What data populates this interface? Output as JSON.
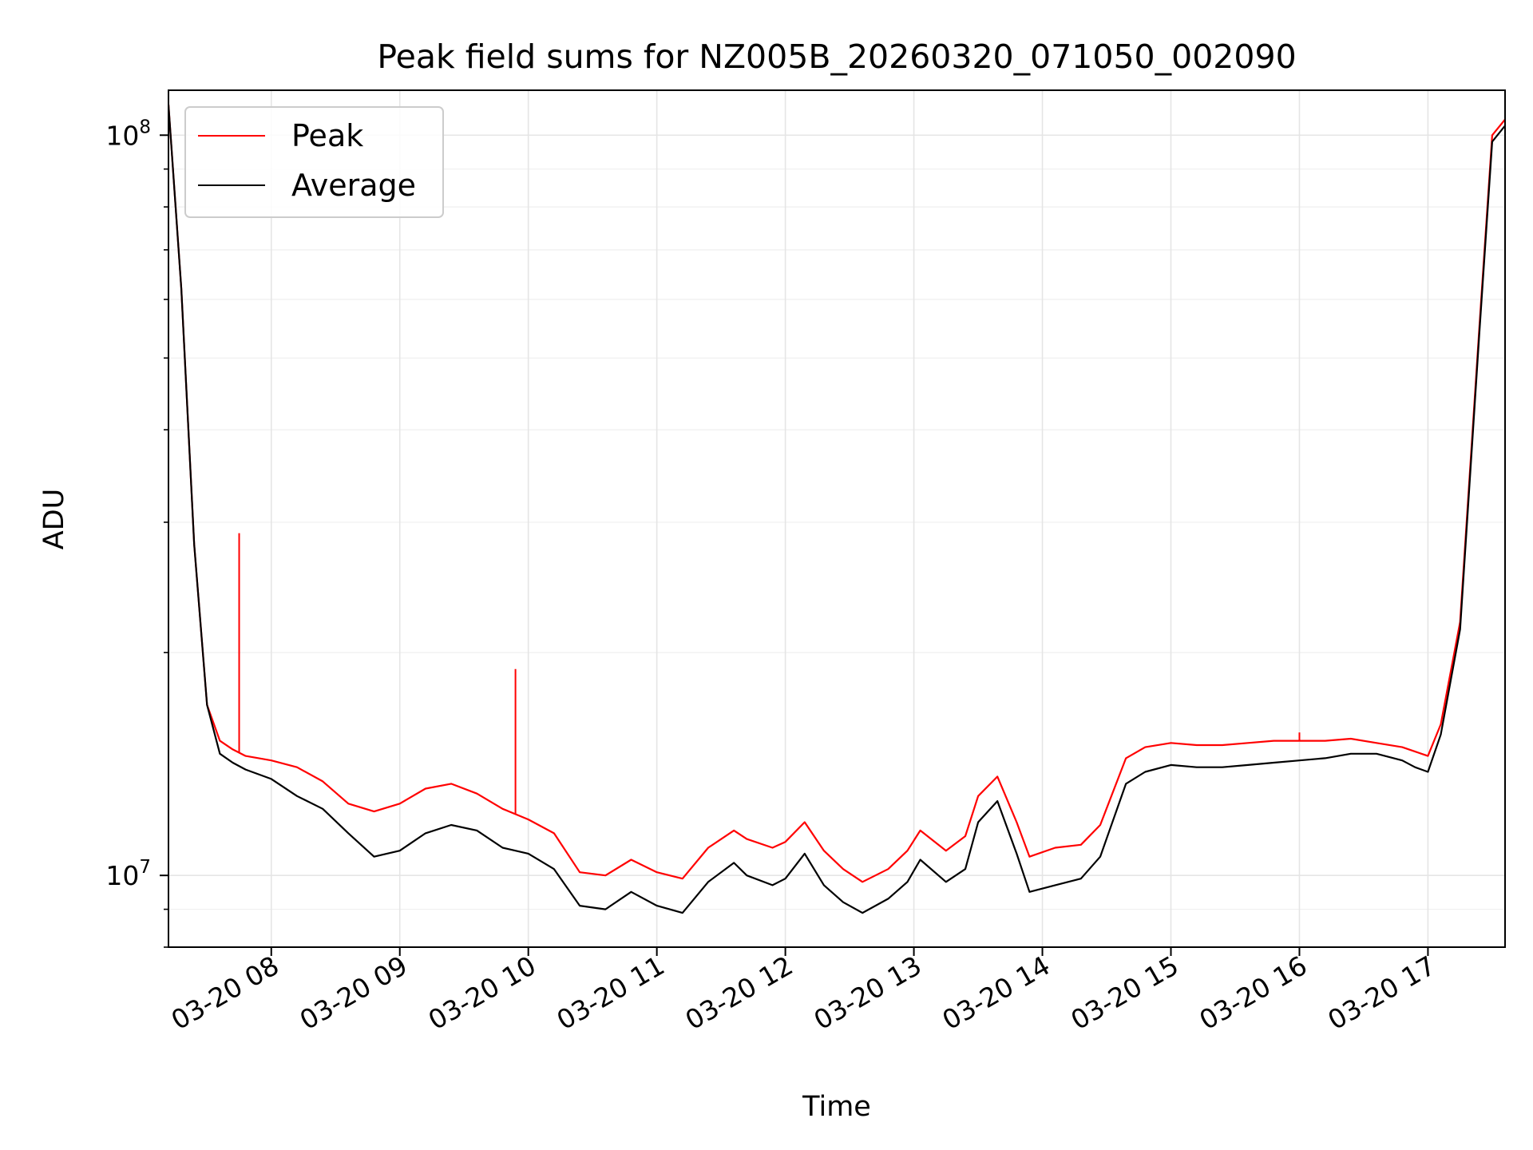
{
  "chart_data": {
    "type": "line",
    "title": "Peak field sums for NZ005B_20260320_071050_002090",
    "xlabel": "Time",
    "ylabel": "ADU",
    "yscale": "log",
    "grid": true,
    "legend_placement": "top-left",
    "xlim": [
      7.2,
      17.6
    ],
    "ylim": [
      8000000,
      115000000
    ],
    "x_ticks": [
      8,
      9,
      10,
      11,
      12,
      13,
      14,
      15,
      16,
      17
    ],
    "x_tick_labels": [
      "03-20 08",
      "03-20 09",
      "03-20 10",
      "03-20 11",
      "03-20 12",
      "03-20 13",
      "03-20 14",
      "03-20 15",
      "03-20 16",
      "03-20 17"
    ],
    "y_ticks": [
      10000000,
      100000000
    ],
    "y_tick_labels": [
      {
        "base": "10",
        "exp": "7"
      },
      {
        "base": "10",
        "exp": "8"
      }
    ],
    "x_unit_note": "x values are hours of day on 2026-03-20",
    "series": [
      {
        "name": "Peak",
        "color": "#ff0000",
        "x": [
          7.2,
          7.3,
          7.4,
          7.5,
          7.6,
          7.7,
          7.8,
          8.0,
          8.2,
          8.4,
          8.6,
          8.8,
          9.0,
          9.2,
          9.4,
          9.6,
          9.8,
          10.0,
          10.2,
          10.4,
          10.6,
          10.8,
          11.0,
          11.2,
          11.4,
          11.6,
          11.7,
          11.9,
          12.0,
          12.15,
          12.3,
          12.45,
          12.6,
          12.8,
          12.95,
          13.05,
          13.25,
          13.4,
          13.5,
          13.65,
          13.8,
          13.9,
          14.1,
          14.3,
          14.45,
          14.65,
          14.8,
          15.0,
          15.2,
          15.4,
          15.6,
          15.8,
          16.0,
          16.2,
          16.4,
          16.6,
          16.8,
          16.9,
          17.0,
          17.1,
          17.25,
          17.4,
          17.5,
          17.6
        ],
        "values": [
          110000000,
          62000000,
          28000000,
          17000000,
          15200000,
          14800000,
          14500000,
          14300000,
          14000000,
          13400000,
          12500000,
          12200000,
          12500000,
          13100000,
          13300000,
          12900000,
          12300000,
          11900000,
          11400000,
          10100000,
          10000000,
          10500000,
          10100000,
          9900000,
          10900000,
          11500000,
          11200000,
          10900000,
          11100000,
          11800000,
          10800000,
          10200000,
          9800000,
          10200000,
          10800000,
          11500000,
          10800000,
          11300000,
          12800000,
          13600000,
          11800000,
          10600000,
          10900000,
          11000000,
          11700000,
          14400000,
          14900000,
          15100000,
          15000000,
          15000000,
          15100000,
          15200000,
          15200000,
          15200000,
          15300000,
          15100000,
          14900000,
          14700000,
          14500000,
          16000000,
          22000000,
          55000000,
          100000000,
          105000000
        ]
      },
      {
        "name": "Average",
        "color": "#000000",
        "x": [
          7.2,
          7.3,
          7.4,
          7.5,
          7.6,
          7.7,
          7.8,
          8.0,
          8.2,
          8.4,
          8.6,
          8.8,
          9.0,
          9.2,
          9.4,
          9.6,
          9.8,
          10.0,
          10.2,
          10.4,
          10.6,
          10.8,
          11.0,
          11.2,
          11.4,
          11.6,
          11.7,
          11.9,
          12.0,
          12.15,
          12.3,
          12.45,
          12.6,
          12.8,
          12.95,
          13.05,
          13.25,
          13.4,
          13.5,
          13.65,
          13.8,
          13.9,
          14.1,
          14.3,
          14.45,
          14.65,
          14.8,
          15.0,
          15.2,
          15.4,
          15.6,
          15.8,
          16.0,
          16.2,
          16.4,
          16.6,
          16.8,
          16.9,
          17.0,
          17.1,
          17.25,
          17.4,
          17.5,
          17.6
        ],
        "values": [
          110000000,
          62000000,
          28000000,
          17000000,
          14600000,
          14200000,
          13900000,
          13500000,
          12800000,
          12300000,
          11400000,
          10600000,
          10800000,
          11400000,
          11700000,
          11500000,
          10900000,
          10700000,
          10200000,
          9100000,
          9000000,
          9500000,
          9100000,
          8900000,
          9800000,
          10400000,
          10000000,
          9700000,
          9900000,
          10700000,
          9700000,
          9200000,
          8900000,
          9300000,
          9800000,
          10500000,
          9800000,
          10200000,
          11800000,
          12600000,
          10700000,
          9500000,
          9700000,
          9900000,
          10600000,
          13300000,
          13800000,
          14100000,
          14000000,
          14000000,
          14100000,
          14200000,
          14300000,
          14400000,
          14600000,
          14600000,
          14300000,
          14000000,
          13800000,
          15500000,
          21500000,
          54000000,
          98000000,
          103000000
        ]
      }
    ],
    "peak_spikes": [
      {
        "x": 7.75,
        "value": 29000000
      },
      {
        "x": 9.9,
        "value": 19000000
      },
      {
        "x": 16.0,
        "value": 15600000
      }
    ]
  }
}
